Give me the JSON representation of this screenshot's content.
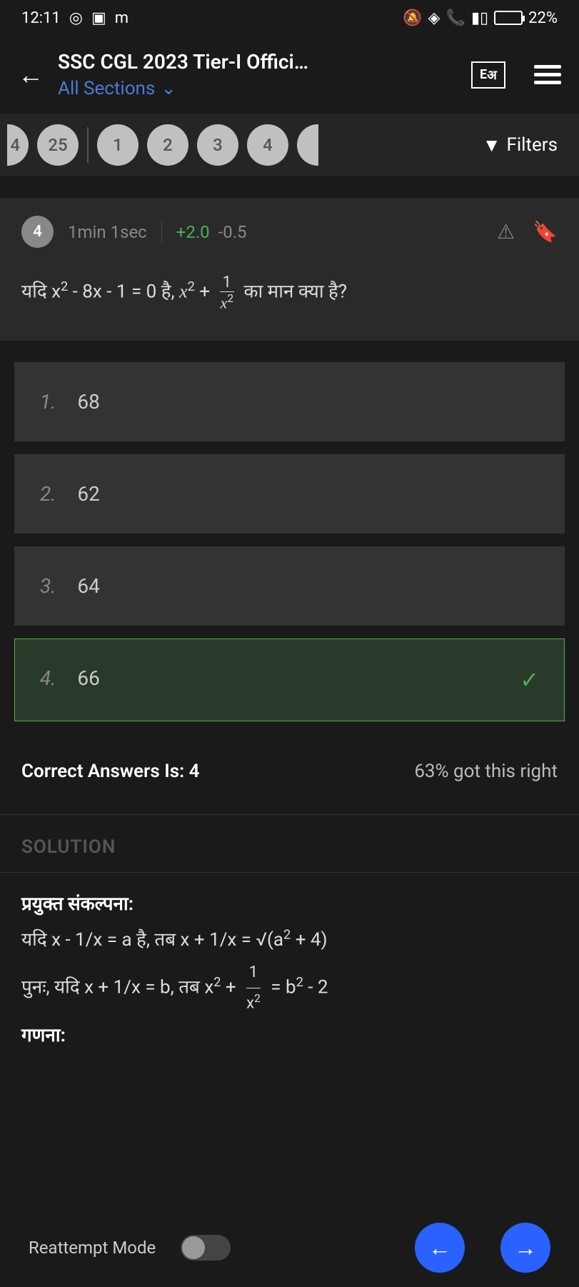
{
  "statusbar": {
    "time": "12:11",
    "battery_pct": "22%"
  },
  "header": {
    "title": "SSC CGL 2023 Tier-I Offici…",
    "subtitle": "All Sections",
    "lang_left": "E",
    "lang_right": "अ"
  },
  "qnav": {
    "partial_left": "4",
    "q25": "25",
    "q1": "1",
    "q2": "2",
    "q3": "3",
    "q4": "4",
    "filters": "Filters"
  },
  "qinfo": {
    "num": "4",
    "time": "1min 1sec",
    "pos_marks": "+2.0",
    "neg_marks": "-0.5"
  },
  "question": {
    "prefix": "यदि x",
    "mid1": " - 8x - 1 = 0 है, ",
    "suffix": " का मान क्या है?"
  },
  "options": {
    "o1_num": "1.",
    "o1_val": "68",
    "o2_num": "2.",
    "o2_val": "62",
    "o3_num": "3.",
    "o3_val": "64",
    "o4_num": "4.",
    "o4_val": "66"
  },
  "answer": {
    "label": "Correct Answers Is: 4",
    "pct": "63% got this right"
  },
  "solution": {
    "label": "SOLUTION",
    "h1": "प्रयुक्त संकल्पना:",
    "l1_a": "यदि x - 1/x = a है, तब x + 1/x = √(a",
    "l1_b": " + 4)",
    "l2_a": "पुनः, यदि x + 1/x = b, तब ",
    "l2_b": " = b",
    "l2_c": " - 2",
    "h2": "गणना:"
  },
  "bottom": {
    "reattempt": "Reattempt Mode"
  },
  "colors": {
    "accent": "#2962ff",
    "correct": "#4caf50",
    "bg": "#1a1a1a",
    "card": "#333"
  }
}
